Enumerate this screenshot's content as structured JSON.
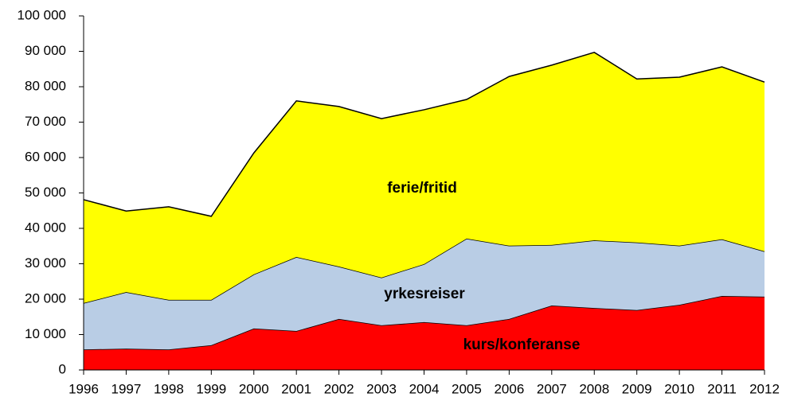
{
  "chart_data": {
    "type": "stacked-area",
    "categories": [
      "1996",
      "1997",
      "1998",
      "1999",
      "2000",
      "2001",
      "2002",
      "2003",
      "2004",
      "2005",
      "2006",
      "2007",
      "2008",
      "2009",
      "2010",
      "2011",
      "2012"
    ],
    "series": [
      {
        "name": "kurs/konferanse",
        "color": "#ff0000",
        "values": [
          5800,
          6000,
          5800,
          7000,
          11700,
          11000,
          14400,
          12600,
          13500,
          12600,
          14400,
          18200,
          17500,
          16900,
          18400,
          20900,
          20700
        ]
      },
      {
        "name": "yrkesreiser",
        "color": "#b9cde5",
        "values": [
          13100,
          16000,
          14000,
          12800,
          15300,
          20900,
          14800,
          13500,
          16400,
          24500,
          20700,
          17100,
          19100,
          19100,
          16700,
          16000,
          12800
        ]
      },
      {
        "name": "ferie/fritid",
        "color": "#ffff00",
        "values": [
          29200,
          22900,
          26300,
          23600,
          34300,
          44100,
          45200,
          44900,
          43600,
          39300,
          47800,
          50800,
          53100,
          46200,
          47600,
          48700,
          47800
        ]
      }
    ],
    "ylim": [
      0,
      100000
    ],
    "yticks": [
      0,
      {
        "value": 10000,
        "label": "10 000"
      },
      {
        "value": 20000,
        "label": "20 000"
      },
      {
        "value": 30000,
        "label": "30 000"
      },
      {
        "value": 40000,
        "label": "40 000"
      },
      {
        "value": 50000,
        "label": "50 000"
      },
      {
        "value": 60000,
        "label": "60 000"
      },
      {
        "value": 70000,
        "label": "70 000"
      },
      {
        "value": 80000,
        "label": "80 000"
      },
      {
        "value": 90000,
        "label": "90 000"
      },
      {
        "value": 100000,
        "label": "100 000"
      }
    ]
  }
}
